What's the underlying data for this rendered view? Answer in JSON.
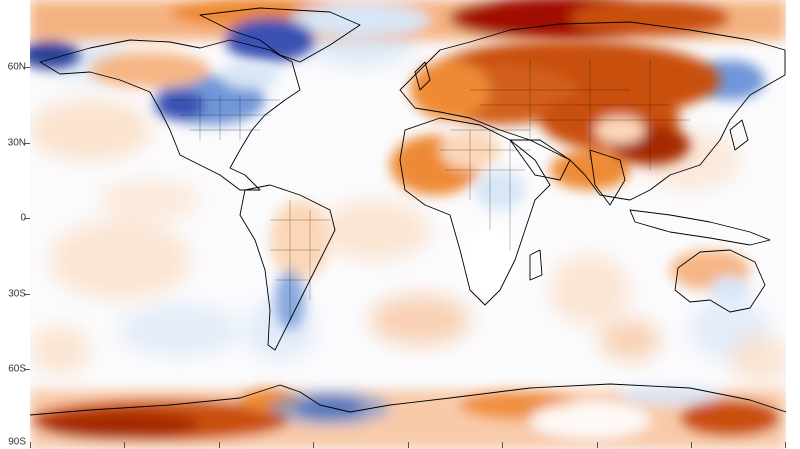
{
  "map": {
    "lat_labels": [
      "60N",
      "30N",
      "0",
      "30S",
      "60S",
      "90S"
    ],
    "lat_values": [
      60,
      30,
      0,
      -30,
      -60,
      -90
    ],
    "lon_ticks": [
      -180,
      -135,
      -90,
      -45,
      0,
      45,
      90,
      135,
      180
    ],
    "colors": {
      "cold_strong": "#2c3f9a",
      "cold": "#6f97d8",
      "cold_light": "#d8e6f6",
      "neutral": "#fbfbfd",
      "warm_light": "#fbd7b8",
      "warm": "#ee8a35",
      "warm_strong": "#c94f0f",
      "hot": "#a10f06",
      "coast": "#000000"
    }
  }
}
